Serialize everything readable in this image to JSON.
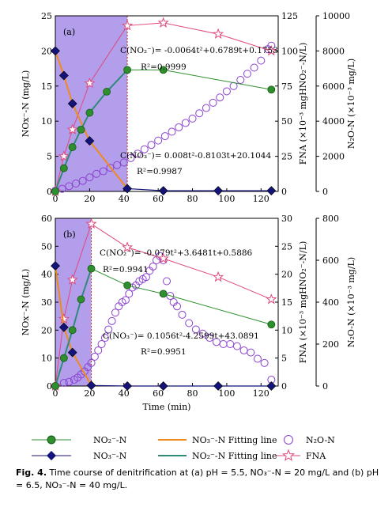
{
  "chart_data": [
    {
      "type": "line",
      "panel_label": "(a)",
      "xlim": [
        0,
        130
      ],
      "left_axis": {
        "label": "NOx⁻-N (mg/L)",
        "ylim": [
          0,
          25
        ],
        "ticks": [
          0,
          5,
          10,
          15,
          20,
          25
        ]
      },
      "fna_axis": {
        "label": "FNA (×10⁻³ mgHNO₂⁻-N/L)",
        "ylim": [
          0,
          125
        ],
        "ticks": [
          0,
          25,
          50,
          75,
          100,
          125
        ]
      },
      "n2o_axis": {
        "label": "N₂O-N (×10⁻³ mg/L)",
        "ylim": [
          0,
          10000
        ],
        "ticks": [
          0,
          2000,
          4000,
          6000,
          8000,
          10000
        ]
      },
      "shaded_range": [
        0,
        42
      ],
      "series": [
        {
          "name": "NO₂⁻-N",
          "axis": "left",
          "x": [
            0,
            5,
            10,
            15,
            20,
            30,
            42,
            63,
            126
          ],
          "y": [
            0,
            3.3,
            6.3,
            8.8,
            11.2,
            14.2,
            17.3,
            17.3,
            14.5
          ]
        },
        {
          "name": "NO₃⁻-N",
          "axis": "left",
          "x": [
            0,
            5,
            10,
            20,
            42,
            63,
            95,
            126
          ],
          "y": [
            20,
            16.5,
            12.5,
            7.2,
            0.4,
            0.1,
            0.1,
            0.1
          ]
        },
        {
          "name": "FNA",
          "axis": "fna",
          "x": [
            0,
            5,
            10,
            20,
            42,
            63,
            95,
            126
          ],
          "y": [
            0,
            25,
            44,
            77,
            118,
            120,
            112,
            100
          ]
        },
        {
          "name": "N₂O-N",
          "axis": "n2o",
          "x": [
            0,
            4,
            8,
            12,
            16,
            20,
            24,
            28,
            32,
            36,
            40,
            44,
            48,
            52,
            56,
            60,
            64,
            68,
            72,
            76,
            80,
            84,
            88,
            92,
            96,
            100,
            104,
            108,
            112,
            116,
            120,
            124,
            126
          ],
          "y": [
            50,
            150,
            300,
            450,
            600,
            800,
            1000,
            1150,
            1350,
            1500,
            1650,
            1900,
            2150,
            2400,
            2650,
            2900,
            3150,
            3400,
            3650,
            3900,
            4150,
            4450,
            4750,
            5050,
            5350,
            5700,
            6000,
            6350,
            6700,
            7050,
            7450,
            8100,
            8300
          ]
        }
      ],
      "fits": {
        "NO₂⁻-N Fitting line": {
          "x": [
            0,
            42
          ]
        },
        "NO₃⁻-N Fitting line": {
          "x": [
            0,
            42
          ]
        }
      },
      "annotations": [
        {
          "text": "C(NO₂⁻)= -0.0064t²+0.6789t+0.1753"
        },
        {
          "text": "R²=0.9999"
        },
        {
          "text": "C(NO₃⁻)= 0.008t²-0.8103t+20.1044"
        },
        {
          "text": "R²=0.9987"
        }
      ]
    },
    {
      "type": "line",
      "panel_label": "(b)",
      "xlim": [
        0,
        130
      ],
      "x_ticks": [
        0,
        20,
        40,
        60,
        80,
        100,
        120
      ],
      "xlabel": "Time (min)",
      "left_axis": {
        "label": "NOx⁻-N (mg/L)",
        "ylim": [
          0,
          60
        ],
        "ticks": [
          0,
          10,
          20,
          30,
          40,
          50,
          60
        ]
      },
      "fna_axis": {
        "label": "FNA (×10⁻³ mgHNO₂⁻-N/L)",
        "ylim": [
          0,
          30
        ],
        "ticks": [
          0,
          5,
          10,
          15,
          20,
          25,
          30
        ]
      },
      "n2o_axis": {
        "label": "N₂O-N (×10⁻³ mg/L)",
        "ylim": [
          0,
          800
        ],
        "ticks": [
          0,
          200,
          400,
          600,
          800
        ]
      },
      "shaded_range": [
        0,
        21
      ],
      "series": [
        {
          "name": "NO₂⁻-N",
          "axis": "left",
          "x": [
            0,
            5,
            10,
            15,
            21,
            42,
            63,
            126
          ],
          "y": [
            0,
            10,
            20,
            31,
            42,
            36,
            33,
            22
          ]
        },
        {
          "name": "NO₃⁻-N",
          "axis": "left",
          "x": [
            0,
            5,
            10,
            21,
            42,
            63,
            95,
            126
          ],
          "y": [
            43,
            21,
            12,
            0.2,
            0,
            0,
            0,
            0
          ]
        },
        {
          "name": "FNA",
          "axis": "fna",
          "x": [
            0,
            5,
            10,
            21,
            42,
            63,
            95,
            126
          ],
          "y": [
            0,
            12,
            19,
            29,
            24.8,
            22.8,
            19.5,
            15.5
          ]
        },
        {
          "name": "N₂O-N",
          "axis": "n2o",
          "x": [
            0,
            5,
            8,
            11,
            13,
            15,
            17,
            19,
            21,
            23,
            25,
            27,
            29,
            31,
            33,
            35,
            37,
            39,
            41,
            43,
            45,
            47,
            49,
            51,
            53,
            55,
            57,
            59,
            61,
            63,
            65,
            67,
            69,
            71,
            74,
            78,
            82,
            86,
            90,
            94,
            98,
            102,
            106,
            110,
            114,
            118,
            122,
            126
          ],
          "y": [
            0,
            15,
            20,
            30,
            40,
            55,
            70,
            90,
            110,
            140,
            170,
            200,
            230,
            270,
            310,
            350,
            380,
            400,
            410,
            440,
            470,
            480,
            500,
            510,
            520,
            550,
            570,
            600,
            620,
            600,
            500,
            430,
            400,
            380,
            340,
            300,
            270,
            250,
            230,
            210,
            200,
            200,
            190,
            170,
            160,
            130,
            110,
            30
          ]
        }
      ],
      "annotations": [
        {
          "text": "C(NO₂⁻)= -0.079t²+3.6481t+0.5886"
        },
        {
          "text": "R²=0.9941"
        },
        {
          "text": "C(NO₃⁻)= 0.1056t²-4.2599t+43.0891"
        },
        {
          "text": "R²=0.9951"
        }
      ]
    }
  ],
  "legend": [
    {
      "label": "NO₂⁻-N",
      "symbol": "green-sphere-line"
    },
    {
      "label": "NO₃⁻-N Fitting line",
      "symbol": "orange-line"
    },
    {
      "label": "N₂O-N",
      "symbol": "purple-open-circle"
    },
    {
      "label": "NO₃⁻-N",
      "symbol": "navy-diamond-line"
    },
    {
      "label": "NO₂⁻-N  Fitting line",
      "symbol": "teal-line"
    },
    {
      "label": "FNA",
      "symbol": "pink-open-star-line"
    }
  ],
  "caption": {
    "prefix": "Fig. 4.",
    "text": "Time course of denitrification at (a) pH = 5.5, NO₃⁻-N = 20 mg/L and (b) pH = 6.5, NO₃⁻-N = 40 mg/L."
  },
  "colors": {
    "shade": "#a58de8",
    "no2": "#2f8f2f",
    "no3": "#13137a",
    "no3_fit": "#f08a1e",
    "no2_fit": "#2f8a78",
    "n2o": "#8a42d0",
    "fna": "#e0487a"
  }
}
